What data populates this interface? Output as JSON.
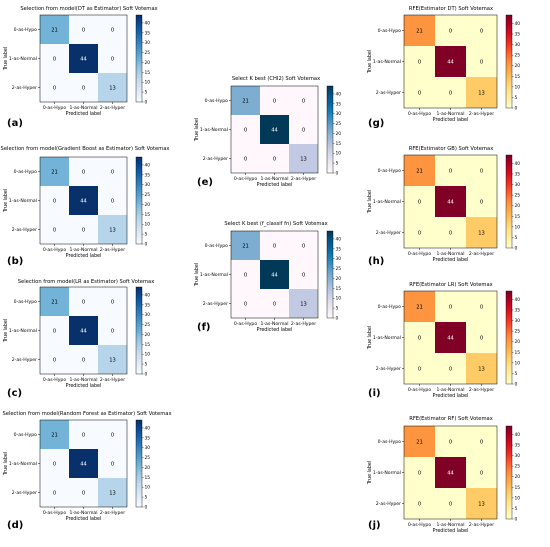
{
  "chart_data": [
    {
      "type": "heatmap",
      "panel_letter": "(a)",
      "title": "Selection from model(DT as Estimator) Soft Votemax",
      "xlabel": "Predicted label",
      "ylabel": "True label",
      "classes": [
        "0-as-Hypo",
        "1-as-Normal",
        "2-as-Hyper"
      ],
      "matrix": [
        [
          21,
          0,
          0
        ],
        [
          0,
          44,
          0
        ],
        [
          0,
          0,
          13
        ]
      ],
      "colormap": "Blues",
      "colorbar_ticks": [
        0,
        5,
        10,
        15,
        20,
        25,
        30,
        35,
        40
      ]
    },
    {
      "type": "heatmap",
      "panel_letter": "(b)",
      "title": "Selection from model(Gradient Boost as Estimator) Soft Votemax",
      "xlabel": "Predicted label",
      "ylabel": "True label",
      "classes": [
        "0-as-Hypo",
        "1-as-Normal",
        "2-as-Hyper"
      ],
      "matrix": [
        [
          21,
          0,
          0
        ],
        [
          0,
          44,
          0
        ],
        [
          0,
          0,
          13
        ]
      ],
      "colormap": "Blues",
      "colorbar_ticks": [
        0,
        5,
        10,
        15,
        20,
        25,
        30,
        35,
        40
      ]
    },
    {
      "type": "heatmap",
      "panel_letter": "(c)",
      "title": "Selection from model(LR as Estimator) Soft Votemax",
      "xlabel": "Predicted label",
      "ylabel": "True label",
      "classes": [
        "0-as-Hypo",
        "1-as-Normal",
        "2-as-Hyper"
      ],
      "matrix": [
        [
          21,
          0,
          0
        ],
        [
          0,
          44,
          0
        ],
        [
          0,
          0,
          13
        ]
      ],
      "colormap": "Blues",
      "colorbar_ticks": [
        0,
        5,
        10,
        15,
        20,
        25,
        30,
        35,
        40
      ]
    },
    {
      "type": "heatmap",
      "panel_letter": "(d)",
      "title": "Selection from model(Random Forest as Estimator) Soft Votemax",
      "xlabel": "Predicted label",
      "ylabel": "True label",
      "classes": [
        "0-as-Hypo",
        "1-as-Normal",
        "2-as-Hyper"
      ],
      "matrix": [
        [
          21,
          0,
          0
        ],
        [
          0,
          44,
          0
        ],
        [
          0,
          0,
          13
        ]
      ],
      "colormap": "Blues",
      "colorbar_ticks": [
        0,
        5,
        10,
        15,
        20,
        25,
        30,
        35,
        40
      ]
    },
    {
      "type": "heatmap",
      "panel_letter": "(e)",
      "title": "Select K best (CHI2) Soft Votemax",
      "xlabel": "Predicted label",
      "ylabel": "True label",
      "classes": [
        "0-as-Hypo",
        "1-as-Normal",
        "2-as-Hyper"
      ],
      "matrix": [
        [
          21,
          0,
          0
        ],
        [
          0,
          44,
          0
        ],
        [
          0,
          0,
          13
        ]
      ],
      "colormap": "PuBu",
      "colorbar_ticks": [
        0,
        5,
        10,
        15,
        20,
        25,
        30,
        35,
        40
      ]
    },
    {
      "type": "heatmap",
      "panel_letter": "(f)",
      "title": "Select K best (f_classif fn) Soft Votemax",
      "xlabel": "Predicted label",
      "ylabel": "True label",
      "classes": [
        "0-as-Hypo",
        "1-as-Normal",
        "2-as-Hyper"
      ],
      "matrix": [
        [
          21,
          0,
          0
        ],
        [
          0,
          44,
          0
        ],
        [
          0,
          0,
          13
        ]
      ],
      "colormap": "PuBu",
      "colorbar_ticks": [
        0,
        5,
        10,
        15,
        20,
        25,
        30,
        35,
        40
      ]
    },
    {
      "type": "heatmap",
      "panel_letter": "(g)",
      "title": "RFE(Estimator DT) Soft Votemax",
      "xlabel": "Predicted label",
      "ylabel": "True label",
      "classes": [
        "0-as-Hypo",
        "1-as-Normal",
        "2-as-Hyper"
      ],
      "matrix": [
        [
          21,
          0,
          0
        ],
        [
          0,
          44,
          0
        ],
        [
          0,
          0,
          13
        ]
      ],
      "colormap": "YlOrRd",
      "colorbar_ticks": [
        0,
        5,
        10,
        15,
        20,
        25,
        30,
        35,
        40
      ]
    },
    {
      "type": "heatmap",
      "panel_letter": "(h)",
      "title": "RFE(Estimator GB) Soft Votemax",
      "xlabel": "Predicted label",
      "ylabel": "True label",
      "classes": [
        "0-as-Hypo",
        "1-as-Normal",
        "2-as-Hyper"
      ],
      "matrix": [
        [
          21,
          0,
          0
        ],
        [
          0,
          44,
          0
        ],
        [
          0,
          0,
          13
        ]
      ],
      "colormap": "YlOrRd",
      "colorbar_ticks": [
        0,
        5,
        10,
        15,
        20,
        25,
        30,
        35,
        40
      ]
    },
    {
      "type": "heatmap",
      "panel_letter": "(i)",
      "title": "RFE(Estimator LR) Soft Votemax",
      "xlabel": "Predicted label",
      "ylabel": "True label",
      "classes": [
        "0-as-Hypo",
        "1-as-Normal",
        "2-as-Hyper"
      ],
      "matrix": [
        [
          21,
          0,
          0
        ],
        [
          0,
          44,
          0
        ],
        [
          0,
          0,
          13
        ]
      ],
      "colormap": "YlOrRd",
      "colorbar_ticks": [
        0,
        5,
        10,
        15,
        20,
        25,
        30,
        35,
        40
      ]
    },
    {
      "type": "heatmap",
      "panel_letter": "(j)",
      "title": "RFE(Estimator RF) Soft Votemax",
      "xlabel": "Predicted label",
      "ylabel": "True label",
      "classes": [
        "0-as-Hypo",
        "1-as-Normal",
        "2-as-Hyper"
      ],
      "matrix": [
        [
          21,
          0,
          0
        ],
        [
          0,
          44,
          0
        ],
        [
          0,
          0,
          13
        ]
      ],
      "colormap": "YlOrRd",
      "colorbar_ticks": [
        0,
        5,
        10,
        15,
        20,
        25,
        30,
        35,
        40
      ]
    }
  ]
}
